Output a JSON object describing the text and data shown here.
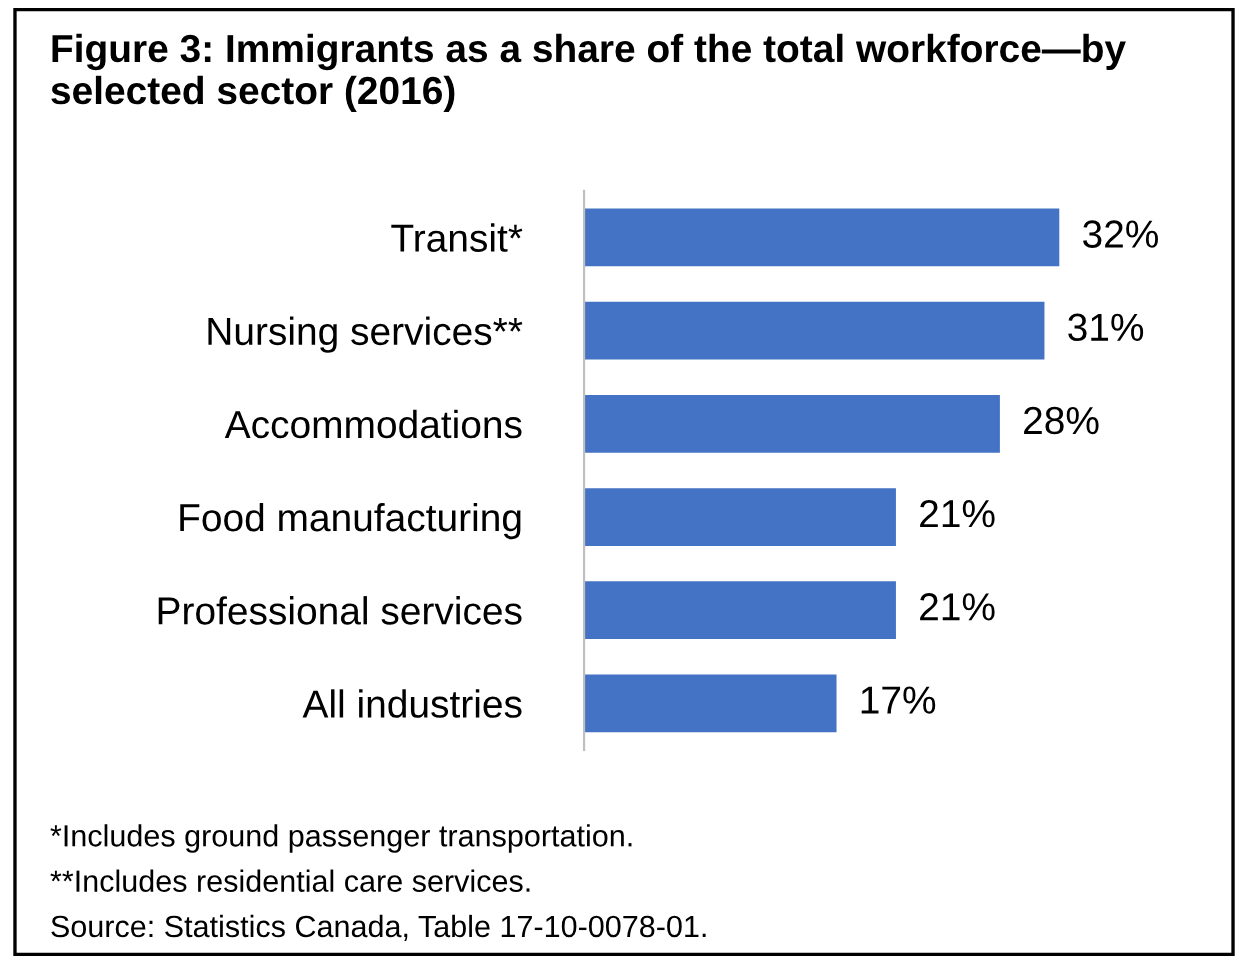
{
  "chart_data": {
    "type": "bar",
    "orientation": "horizontal",
    "title": "Figure 3: Immigrants as a share of the total workforce—by selected sector (2016)",
    "categories": [
      "Transit*",
      "Nursing services**",
      "Accommodations",
      "Food manufacturing",
      "Professional services",
      "All industries"
    ],
    "values": [
      32,
      31,
      28,
      21,
      21,
      17
    ],
    "value_labels": [
      "32%",
      "31%",
      "28%",
      "21%",
      "21%",
      "17%"
    ],
    "color": "#4472c4",
    "grid": false,
    "legend": false,
    "annotations": [
      "*Includes ground passenger transportation.",
      "**Includes residential care services.",
      "Source: Statistics Canada, Table 17-10-0078-01."
    ]
  }
}
